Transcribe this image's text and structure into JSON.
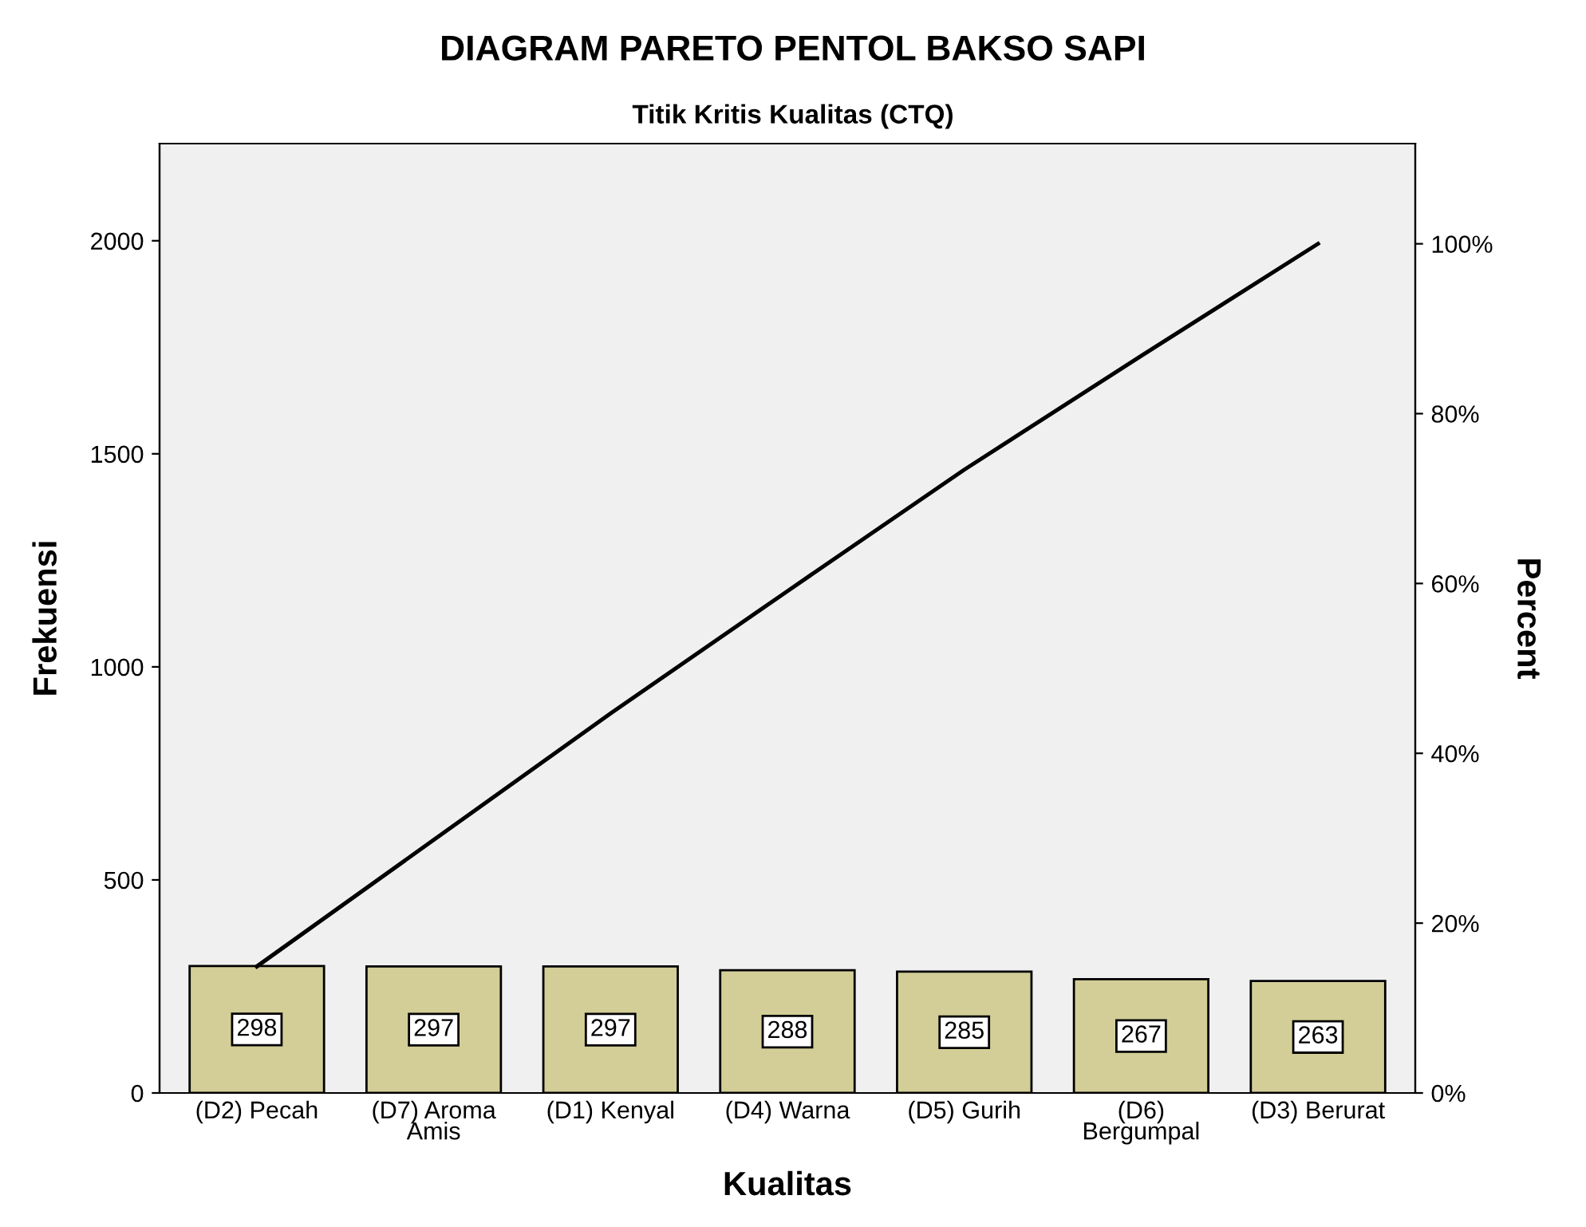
{
  "chart_data": {
    "type": "bar",
    "title": "DIAGRAM PARETO PENTOL BAKSO SAPI",
    "subtitle": "Titik Kritis Kualitas (CTQ)",
    "xlabel": "Kualitas",
    "ylabel": "Frekuensi",
    "y2label": "Percent",
    "categories": [
      "(D2) Pecah",
      "(D7) Aroma\nAmis",
      "(D1) Kenyal",
      "(D4) Warna",
      "(D5) Gurih",
      "(D6)\nBergumpal",
      "(D3) Berurat"
    ],
    "series": [
      {
        "color": "#d3ce97",
        "values": [
          298,
          297,
          297,
          288,
          285,
          267,
          263
        ],
        "value_labels": [
          "298",
          "297",
          "297",
          "288",
          "285",
          "267",
          "263"
        ]
      },
      {
        "type": "line",
        "axis": "y2",
        "color": "#000000",
        "values": [
          14.9,
          29.8,
          44.7,
          59.1,
          73.4,
          86.8,
          100.0
        ]
      }
    ],
    "ylim": [
      0,
      2228
    ],
    "yticks": [
      0,
      500,
      1000,
      1500,
      2000
    ],
    "y2lim": [
      0,
      111.8
    ],
    "y2ticks": [
      {
        "value": 0,
        "label": "0%"
      },
      {
        "value": 20,
        "label": "20%"
      },
      {
        "value": 40,
        "label": "40%"
      },
      {
        "value": 60,
        "label": "60%"
      },
      {
        "value": 80,
        "label": "80%"
      },
      {
        "value": 100,
        "label": "100%"
      }
    ],
    "grid": false,
    "legend": false
  }
}
